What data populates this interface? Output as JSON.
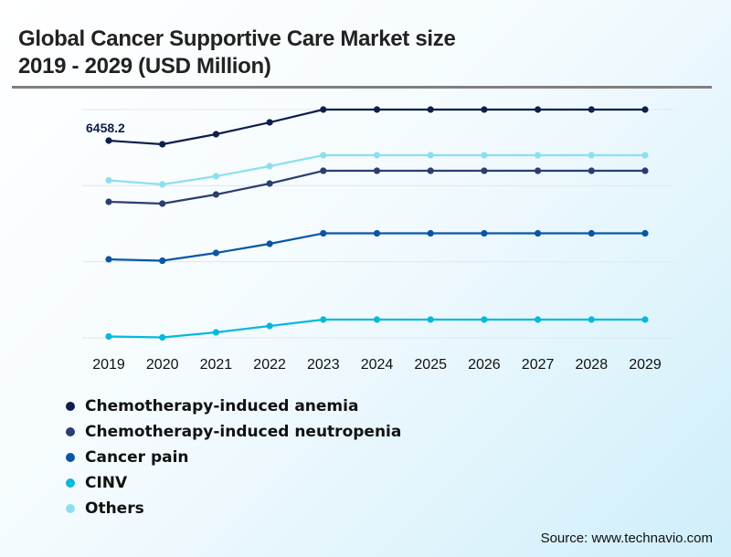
{
  "title_line1": "Global Cancer Supportive Care Market size",
  "title_line2": "2019 - 2029 (USD Million)",
  "source": "Source: www.technavio.com",
  "chart_data": {
    "type": "line",
    "title": "Global Cancer Supportive Care Market size 2019 - 2029 (USD Million)",
    "xlabel": "",
    "ylabel": "USD Million",
    "x": [
      "2019",
      "2020",
      "2021",
      "2022",
      "2023",
      "2024",
      "2025",
      "2026",
      "2027",
      "2028",
      "2029"
    ],
    "ylim": [
      0,
      7475
    ],
    "grid": true,
    "legend_position": "bottom-left",
    "annotations": [
      {
        "series": "Chemotherapy-induced anemia",
        "x": "2019",
        "text": "6458.2"
      }
    ],
    "series": [
      {
        "name": "Chemotherapy-induced anemia",
        "color": "#0d1f4a",
        "values": [
          6458.2,
          6339,
          6668,
          7056,
          7475,
          7475,
          7475,
          7475,
          7475,
          7475,
          7475
        ]
      },
      {
        "name": "Chemotherapy-induced neutropenia",
        "color": "#2c3e70",
        "values": [
          4455,
          4395,
          4694,
          5053,
          5471,
          5471,
          5471,
          5471,
          5471,
          5471,
          5471
        ]
      },
      {
        "name": "Cancer pain",
        "color": "#0a56a5",
        "values": [
          2571,
          2526,
          2781,
          3080,
          3423,
          3423,
          3423,
          3423,
          3423,
          3423,
          3423
        ]
      },
      {
        "name": "CINV",
        "color": "#06b9dc",
        "values": [
          45,
          15,
          179,
          389,
          598,
          598,
          598,
          598,
          598,
          598,
          598
        ]
      },
      {
        "name": "Others",
        "color": "#8ddff0",
        "values": [
          5158,
          5023,
          5292,
          5621,
          5980,
          5980,
          5980,
          5980,
          5980,
          5980,
          5980
        ]
      }
    ]
  }
}
